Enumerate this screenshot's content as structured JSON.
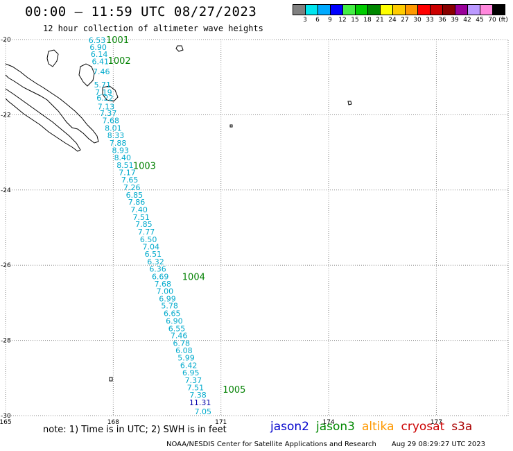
{
  "header": {
    "title": "00:00 – 11:59 UTC 08/27/2023",
    "subtitle": "12 hour collection of altimeter wave heights"
  },
  "legend": {
    "unit": "(ft)",
    "bins": [
      {
        "label": "3",
        "color": "#808080"
      },
      {
        "label": "6",
        "color": "#00e5ee"
      },
      {
        "label": "9",
        "color": "#00aaff"
      },
      {
        "label": "12",
        "color": "#0000ff"
      },
      {
        "label": "15",
        "color": "#44ee44"
      },
      {
        "label": "18",
        "color": "#00cc00"
      },
      {
        "label": "21",
        "color": "#008800"
      },
      {
        "label": "24",
        "color": "#ffff00"
      },
      {
        "label": "27",
        "color": "#ffcc00"
      },
      {
        "label": "30",
        "color": "#ff9900"
      },
      {
        "label": "33",
        "color": "#ff0000"
      },
      {
        "label": "36",
        "color": "#cc0000"
      },
      {
        "label": "39",
        "color": "#880000"
      },
      {
        "label": "42",
        "color": "#990099"
      },
      {
        "label": "45",
        "color": "#bb99ff"
      },
      {
        "label": "70",
        "color": "#ff88dd"
      },
      {
        "label": "",
        "color": "#000000"
      }
    ]
  },
  "map": {
    "lat_range": [
      -30,
      -20
    ],
    "lon_range": [
      165,
      179
    ],
    "lat_labels": [
      "-20",
      "-22",
      "-24",
      "-26",
      "-28",
      "-30"
    ],
    "lon_labels": [
      "165",
      "168",
      "171",
      "174",
      "177"
    ],
    "track_color": "#00aacc",
    "highlight_color": "#0000aa",
    "wave_heights": [
      {
        "lon": 167.55,
        "lat": -20.02,
        "value": "6.53"
      },
      {
        "lon": 167.58,
        "lat": -20.2,
        "value": "6.90"
      },
      {
        "lon": 167.61,
        "lat": -20.39,
        "value": "6.14"
      },
      {
        "lon": 167.64,
        "lat": -20.58,
        "value": "6.41"
      },
      {
        "lon": 167.67,
        "lat": -20.85,
        "value": "7.46"
      },
      {
        "lon": 167.7,
        "lat": -21.2,
        "value": "5.71"
      },
      {
        "lon": 167.73,
        "lat": -21.4,
        "value": "7.19"
      },
      {
        "lon": 167.77,
        "lat": -21.55,
        "value": "6.22"
      },
      {
        "lon": 167.8,
        "lat": -21.78,
        "value": "7.13"
      },
      {
        "lon": 167.86,
        "lat": -21.96,
        "value": "7.37"
      },
      {
        "lon": 167.93,
        "lat": -22.15,
        "value": "7.68"
      },
      {
        "lon": 168.0,
        "lat": -22.35,
        "value": "8.01"
      },
      {
        "lon": 168.07,
        "lat": -22.55,
        "value": "8.33"
      },
      {
        "lon": 168.13,
        "lat": -22.75,
        "value": "7.88"
      },
      {
        "lon": 168.2,
        "lat": -22.94,
        "value": "8.93"
      },
      {
        "lon": 168.26,
        "lat": -23.14,
        "value": "8.40"
      },
      {
        "lon": 168.33,
        "lat": -23.34,
        "value": "8.51"
      },
      {
        "lon": 168.39,
        "lat": -23.53,
        "value": "7.17"
      },
      {
        "lon": 168.46,
        "lat": -23.73,
        "value": "7.65"
      },
      {
        "lon": 168.52,
        "lat": -23.93,
        "value": "7.26"
      },
      {
        "lon": 168.59,
        "lat": -24.13,
        "value": "6.85"
      },
      {
        "lon": 168.65,
        "lat": -24.32,
        "value": "7.86"
      },
      {
        "lon": 168.72,
        "lat": -24.52,
        "value": "7.40"
      },
      {
        "lon": 168.78,
        "lat": -24.72,
        "value": "7.51"
      },
      {
        "lon": 168.85,
        "lat": -24.91,
        "value": "7.85"
      },
      {
        "lon": 168.92,
        "lat": -25.11,
        "value": "7.77"
      },
      {
        "lon": 168.98,
        "lat": -25.31,
        "value": "6.50"
      },
      {
        "lon": 169.05,
        "lat": -25.51,
        "value": "7.04"
      },
      {
        "lon": 169.11,
        "lat": -25.7,
        "value": "6.51"
      },
      {
        "lon": 169.18,
        "lat": -25.9,
        "value": "6.32"
      },
      {
        "lon": 169.24,
        "lat": -26.1,
        "value": "6.36"
      },
      {
        "lon": 169.31,
        "lat": -26.3,
        "value": "6.69"
      },
      {
        "lon": 169.38,
        "lat": -26.49,
        "value": "7.68"
      },
      {
        "lon": 169.44,
        "lat": -26.69,
        "value": "7.00"
      },
      {
        "lon": 169.51,
        "lat": -26.89,
        "value": "6.99"
      },
      {
        "lon": 169.57,
        "lat": -27.08,
        "value": "5.78"
      },
      {
        "lon": 169.64,
        "lat": -27.28,
        "value": "6.65"
      },
      {
        "lon": 169.7,
        "lat": -27.48,
        "value": "6.90"
      },
      {
        "lon": 169.77,
        "lat": -27.68,
        "value": "6.55"
      },
      {
        "lon": 169.83,
        "lat": -27.87,
        "value": "7.46"
      },
      {
        "lon": 169.9,
        "lat": -28.07,
        "value": "6.78"
      },
      {
        "lon": 169.97,
        "lat": -28.27,
        "value": "6.08"
      },
      {
        "lon": 170.03,
        "lat": -28.46,
        "value": "5.99"
      },
      {
        "lon": 170.1,
        "lat": -28.66,
        "value": "6.42"
      },
      {
        "lon": 170.16,
        "lat": -28.86,
        "value": "6.95"
      },
      {
        "lon": 170.23,
        "lat": -29.06,
        "value": "7.37"
      },
      {
        "lon": 170.29,
        "lat": -29.25,
        "value": "7.51"
      },
      {
        "lon": 170.36,
        "lat": -29.45,
        "value": "7.38"
      },
      {
        "lon": 170.42,
        "lat": -29.65,
        "value": "11.31",
        "highlight": true
      },
      {
        "lon": 170.5,
        "lat": -29.89,
        "value": "7.05"
      }
    ],
    "cycle_labels": [
      {
        "lon": 167.8,
        "lat": -20.0,
        "value": "1001"
      },
      {
        "lon": 167.85,
        "lat": -20.55,
        "value": "1002"
      },
      {
        "lon": 168.55,
        "lat": -23.35,
        "value": "1003"
      },
      {
        "lon": 169.92,
        "lat": -26.3,
        "value": "1004"
      },
      {
        "lon": 171.05,
        "lat": -29.3,
        "value": "1005"
      }
    ]
  },
  "note": "note: 1) Time is in UTC; 2) SWH is in feet",
  "satellites": [
    {
      "name": "jason2",
      "color": "#0000cc"
    },
    {
      "name": "jason3",
      "color": "#008800"
    },
    {
      "name": "altika",
      "color": "#ff9900"
    },
    {
      "name": "cryosat",
      "color": "#cc0000"
    },
    {
      "name": "s3a",
      "color": "#aa0000"
    }
  ],
  "footer": {
    "center": "NOAA/NESDIS Center for Satellite Applications and Research",
    "timestamp": "Aug 29 08:29:27 UTC 2023"
  }
}
